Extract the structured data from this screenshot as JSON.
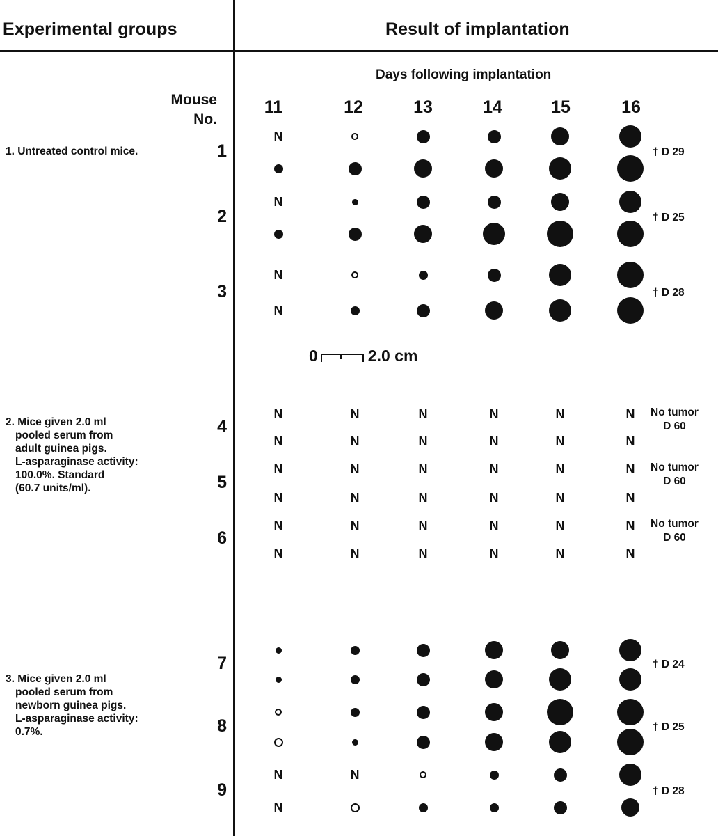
{
  "header": {
    "left": "Experimental groups",
    "right": "Result of implantation",
    "days_caption": "Days following implantation",
    "mouse_line1": "Mouse",
    "mouse_line2": "No."
  },
  "days": [
    "11",
    "12",
    "13",
    "14",
    "15",
    "16"
  ],
  "scale": {
    "zero": "0",
    "value": "2.0 cm"
  },
  "groups": [
    {
      "lines": [
        "1. Untreated control mice."
      ]
    },
    {
      "lines": [
        "2. Mice given 2.0 ml",
        "pooled serum from",
        "adult guinea pigs.",
        "L-asparaginase activity:",
        "100.0%. Standard",
        "(60.7 units/ml)."
      ]
    },
    {
      "lines": [
        "3. Mice given 2.0 ml",
        "pooled serum from",
        "newborn guinea pigs.",
        "L-asparaginase activity:",
        "0.7%."
      ]
    }
  ],
  "mice": [
    {
      "number": "1",
      "outcome": [
        "† D 29"
      ],
      "rows": [
        [
          "N",
          "ring-small",
          "dot-m",
          "dot-m",
          "dot-l",
          "dot-xl"
        ],
        [
          "dot-s",
          "dot-m",
          "dot-l",
          "dot-l",
          "dot-xl",
          "dot-xxl"
        ]
      ]
    },
    {
      "number": "2",
      "outcome": [
        "† D 25"
      ],
      "rows": [
        [
          "N",
          "dot-xs",
          "dot-m",
          "dot-m",
          "dot-l",
          "dot-xl"
        ],
        [
          "dot-s",
          "dot-m",
          "dot-l",
          "dot-xl",
          "dot-xxl",
          "dot-xxl"
        ]
      ]
    },
    {
      "number": "3",
      "outcome": [
        "† D 28"
      ],
      "rows": [
        [
          "N",
          "ring-small",
          "dot-s",
          "dot-m",
          "dot-xl",
          "dot-xxl"
        ],
        [
          "N",
          "dot-s",
          "dot-m",
          "dot-l",
          "dot-xl",
          "dot-xxl"
        ]
      ]
    },
    {
      "number": "4",
      "outcome": [
        "No tumor",
        "D 60"
      ],
      "rows": [
        [
          "N",
          "N",
          "N",
          "N",
          "N",
          "N"
        ],
        [
          "N",
          "N",
          "N",
          "N",
          "N",
          "N"
        ]
      ]
    },
    {
      "number": "5",
      "outcome": [
        "No tumor",
        "D 60"
      ],
      "rows": [
        [
          "N",
          "N",
          "N",
          "N",
          "N",
          "N"
        ],
        [
          "N",
          "N",
          "N",
          "N",
          "N",
          "N"
        ]
      ]
    },
    {
      "number": "6",
      "outcome": [
        "No tumor",
        "D 60"
      ],
      "rows": [
        [
          "N",
          "N",
          "N",
          "N",
          "N",
          "N"
        ],
        [
          "N",
          "N",
          "N",
          "N",
          "N",
          "N"
        ]
      ]
    },
    {
      "number": "7",
      "outcome": [
        "† D 24"
      ],
      "rows": [
        [
          "dot-xs",
          "dot-s",
          "dot-m",
          "dot-l",
          "dot-l",
          "dot-xl"
        ],
        [
          "dot-xs",
          "dot-s",
          "dot-m",
          "dot-l",
          "dot-xl",
          "dot-xl"
        ]
      ]
    },
    {
      "number": "8",
      "outcome": [
        "† D 25"
      ],
      "rows": [
        [
          "ring-small",
          "dot-s",
          "dot-m",
          "dot-l",
          "dot-xxl",
          "dot-xxl"
        ],
        [
          "ring-medium",
          "dot-xs",
          "dot-m",
          "dot-l",
          "dot-xl",
          "dot-xxl"
        ]
      ]
    },
    {
      "number": "9",
      "outcome": [
        "† D 28"
      ],
      "rows": [
        [
          "N",
          "N",
          "ring-small",
          "dot-s",
          "dot-m",
          "dot-xl"
        ],
        [
          "N",
          "ring-medium",
          "dot-s",
          "dot-s",
          "dot-m",
          "dot-l"
        ]
      ]
    }
  ]
}
